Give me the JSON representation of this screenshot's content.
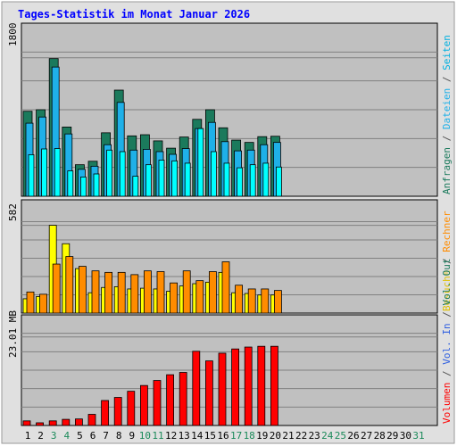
{
  "chart_data": {
    "type": "bar",
    "title": "Tages-Statistik im Monat Januar 2026",
    "colors": {
      "hits": "#1b7a5c",
      "files": "#1fb0e8",
      "pages": "#00ffff",
      "visits": "#ffff00",
      "sites": "#ff8c00",
      "kbytes": "#ff0000",
      "in": "#3060e0",
      "out": "#1b7a5c",
      "title": "#0000ff",
      "plot_bg": "#c0c0c0",
      "frame_bg": "#e0e0e0"
    },
    "x": [
      "1",
      "2",
      "3",
      "4",
      "5",
      "6",
      "7",
      "8",
      "9",
      "10",
      "11",
      "12",
      "13",
      "14",
      "15",
      "16",
      "17",
      "18",
      "19",
      "20",
      "21",
      "22",
      "23",
      "24",
      "25",
      "26",
      "27",
      "28",
      "29",
      "30",
      "31"
    ],
    "weekend_days": [
      "3",
      "4",
      "10",
      "11",
      "17",
      "18",
      "24",
      "25",
      "31"
    ],
    "panels": [
      {
        "id": "top",
        "max_label": "1800",
        "ymax": 1800,
        "right_label_parts": [
          {
            "text": "Anfragen",
            "color": "#1b7a5c"
          },
          {
            "text": " / ",
            "color": "#555555"
          },
          {
            "text": "Dateien",
            "color": "#1fb0e8"
          },
          {
            "text": " / ",
            "color": "#555555"
          },
          {
            "text": "Seiten",
            "color": "#00b0e0"
          }
        ],
        "series": [
          {
            "name": "Anfragen",
            "values": [
              1105,
              1125,
              1790,
              900,
              410,
              455,
              825,
              1380,
              785,
              800,
              720,
              625,
              770,
              1000,
              1125,
              890,
              730,
              700,
              775,
              780
            ]
          },
          {
            "name": "Dateien",
            "values": [
              950,
              1030,
              1680,
              810,
              350,
              390,
              670,
              1220,
              600,
              610,
              580,
              545,
              620,
              880,
              960,
              710,
              590,
              600,
              670,
              700
            ]
          },
          {
            "name": "Seiten",
            "values": [
              540,
              615,
              620,
              330,
              250,
              290,
              600,
              580,
              260,
              410,
              470,
              460,
              430,
              880,
              580,
              430,
              370,
              410,
              430,
              380
            ]
          }
        ]
      },
      {
        "id": "mid",
        "max_label": "582",
        "ymax": 582,
        "right_label_parts": [
          {
            "text": "Besuche",
            "color": "#e0c000"
          },
          {
            "text": " / ",
            "color": "#555555"
          },
          {
            "text": "Rechner",
            "color": "#ff8c00"
          }
        ],
        "series": [
          {
            "name": "Besuche",
            "values": [
              95,
              110,
              582,
              460,
              295,
              135,
              170,
              175,
              160,
              165,
              160,
              145,
              180,
              195,
              205,
              270,
              135,
              130,
              120,
              120
            ]
          },
          {
            "name": "Rechner",
            "values": [
              140,
              125,
              325,
              375,
              310,
              280,
              270,
              270,
              255,
              280,
              275,
              200,
              280,
              215,
              275,
              340,
              185,
              160,
              160,
              150
            ]
          }
        ]
      },
      {
        "id": "bottom",
        "max_label": "23.01 MB",
        "ymax": 23.01,
        "right_label_parts": [
          {
            "text": "Volumen",
            "color": "#ff0000"
          },
          {
            "text": " / ",
            "color": "#555555"
          },
          {
            "text": "Vol. In",
            "color": "#3060e0"
          },
          {
            "text": " / ",
            "color": "#555555"
          },
          {
            "text": "Vol. Out",
            "color": "#1b7a5c"
          }
        ],
        "series": [
          {
            "name": "Volumen",
            "values": [
              1.2,
              0.7,
              1.2,
              1.6,
              1.7,
              2.9,
              6.5,
              7.3,
              8.9,
              10.4,
              11.7,
              13.2,
              13.8,
              19.3,
              16.8,
              18.8,
              19.9,
              20.4,
              20.6,
              20.6
            ]
          }
        ]
      }
    ]
  }
}
